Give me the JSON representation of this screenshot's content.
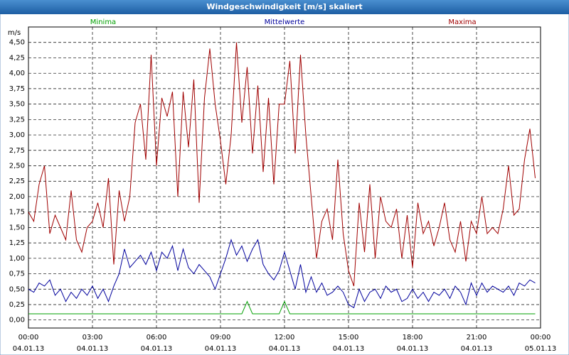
{
  "chart_data": {
    "type": "line",
    "title": "Windgeschwindigkeit [m/s] skaliert",
    "y_label": "m/s",
    "grid": true,
    "xlim": [
      0,
      24
    ],
    "ylim": [
      -0.13,
      4.75
    ],
    "xticks": [
      {
        "value": 0,
        "label": "00:00",
        "date": "04.01.13"
      },
      {
        "value": 3,
        "label": "03:00",
        "date": "04.01.13"
      },
      {
        "value": 6,
        "label": "06:00",
        "date": "04.01.13"
      },
      {
        "value": 9,
        "label": "09:00",
        "date": "04.01.13"
      },
      {
        "value": 12,
        "label": "12:00",
        "date": "04.01.13"
      },
      {
        "value": 15,
        "label": "15:00",
        "date": "04.01.13"
      },
      {
        "value": 18,
        "label": "18:00",
        "date": "04.01.13"
      },
      {
        "value": 21,
        "label": "21:00",
        "date": "04.01.13"
      },
      {
        "value": 24,
        "label": "00:00",
        "date": "05.01.13"
      }
    ],
    "yticks": [
      {
        "value": 0,
        "label": "0,00"
      },
      {
        "value": 0.25,
        "label": "0,25"
      },
      {
        "value": 0.5,
        "label": "0,50"
      },
      {
        "value": 0.75,
        "label": "0,75"
      },
      {
        "value": 1,
        "label": "1,00"
      },
      {
        "value": 1.25,
        "label": "1,25"
      },
      {
        "value": 1.5,
        "label": "1,50"
      },
      {
        "value": 1.75,
        "label": "1,75"
      },
      {
        "value": 2,
        "label": "2,00"
      },
      {
        "value": 2.25,
        "label": "2,25"
      },
      {
        "value": 2.5,
        "label": "2,50"
      },
      {
        "value": 2.75,
        "label": "2,75"
      },
      {
        "value": 3,
        "label": "3,00"
      },
      {
        "value": 3.25,
        "label": "3,25"
      },
      {
        "value": 3.5,
        "label": "3,50"
      },
      {
        "value": 3.75,
        "label": "3,75"
      },
      {
        "value": 4,
        "label": "4,00"
      },
      {
        "value": 4.25,
        "label": "4,25"
      },
      {
        "value": 4.5,
        "label": "4,50"
      }
    ],
    "x": [
      0,
      0.25,
      0.5,
      0.75,
      1,
      1.25,
      1.5,
      1.75,
      2,
      2.25,
      2.5,
      2.75,
      3,
      3.25,
      3.5,
      3.75,
      4,
      4.25,
      4.5,
      4.75,
      5,
      5.25,
      5.5,
      5.75,
      6,
      6.25,
      6.5,
      6.75,
      7,
      7.25,
      7.5,
      7.75,
      8,
      8.25,
      8.5,
      8.75,
      9,
      9.25,
      9.5,
      9.75,
      10,
      10.25,
      10.5,
      10.75,
      11,
      11.25,
      11.5,
      11.75,
      12,
      12.25,
      12.5,
      12.75,
      13,
      13.25,
      13.5,
      13.75,
      14,
      14.25,
      14.5,
      14.75,
      15,
      15.25,
      15.5,
      15.75,
      16,
      16.25,
      16.5,
      16.75,
      17,
      17.25,
      17.5,
      17.75,
      18,
      18.25,
      18.5,
      18.75,
      19,
      19.25,
      19.5,
      19.75,
      20,
      20.25,
      20.5,
      20.75,
      21,
      21.25,
      21.5,
      21.75,
      22,
      22.25,
      22.5,
      22.75,
      23,
      23.25,
      23.5,
      23.75
    ],
    "series": [
      {
        "name": "Minima",
        "color": "#00a000",
        "values": [
          0.1,
          0.1,
          0.1,
          0.1,
          0.1,
          0.1,
          0.1,
          0.1,
          0.1,
          0.1,
          0.1,
          0.1,
          0.1,
          0.1,
          0.1,
          0.1,
          0.1,
          0.1,
          0.1,
          0.1,
          0.1,
          0.1,
          0.1,
          0.1,
          0.1,
          0.1,
          0.1,
          0.1,
          0.1,
          0.1,
          0.1,
          0.1,
          0.1,
          0.1,
          0.1,
          0.1,
          0.1,
          0.1,
          0.1,
          0.1,
          0.1,
          0.3,
          0.1,
          0.1,
          0.1,
          0.1,
          0.1,
          0.1,
          0.3,
          0.1,
          0.1,
          0.1,
          0.1,
          0.1,
          0.1,
          0.1,
          0.1,
          0.1,
          0.1,
          0.1,
          0.1,
          0.1,
          0.1,
          0.1,
          0.1,
          0.1,
          0.1,
          0.1,
          0.1,
          0.1,
          0.1,
          0.1,
          0.1,
          0.1,
          0.1,
          0.1,
          0.1,
          0.1,
          0.1,
          0.1,
          0.1,
          0.1,
          0.1,
          0.1,
          0.1,
          0.1,
          0.1,
          0.1,
          0.1,
          0.1,
          0.1,
          0.1,
          0.1,
          0.1,
          0.1,
          0.1
        ]
      },
      {
        "name": "Mittelwerte",
        "color": "#00009c",
        "values": [
          0.5,
          0.45,
          0.6,
          0.55,
          0.65,
          0.4,
          0.5,
          0.3,
          0.45,
          0.35,
          0.5,
          0.4,
          0.55,
          0.35,
          0.5,
          0.3,
          0.55,
          0.75,
          1.15,
          0.85,
          0.95,
          1.05,
          0.9,
          1.1,
          0.8,
          1.1,
          1.0,
          1.2,
          0.8,
          1.15,
          0.85,
          0.75,
          0.9,
          0.8,
          0.7,
          0.5,
          0.75,
          1.0,
          1.3,
          1.05,
          1.2,
          0.95,
          1.15,
          1.3,
          0.9,
          0.75,
          0.65,
          0.8,
          1.1,
          0.8,
          0.5,
          0.9,
          0.45,
          0.7,
          0.45,
          0.6,
          0.4,
          0.45,
          0.55,
          0.45,
          0.25,
          0.2,
          0.5,
          0.3,
          0.45,
          0.5,
          0.35,
          0.55,
          0.45,
          0.5,
          0.3,
          0.35,
          0.5,
          0.35,
          0.45,
          0.3,
          0.45,
          0.4,
          0.5,
          0.35,
          0.55,
          0.45,
          0.25,
          0.6,
          0.4,
          0.6,
          0.45,
          0.55,
          0.5,
          0.45,
          0.55,
          0.4,
          0.6,
          0.55,
          0.65,
          0.6
        ]
      },
      {
        "name": "Maxima",
        "color": "#a00000",
        "values": [
          1.75,
          1.6,
          2.2,
          2.5,
          1.4,
          1.7,
          1.5,
          1.3,
          2.1,
          1.3,
          1.1,
          1.5,
          1.6,
          1.9,
          1.5,
          2.3,
          0.9,
          2.1,
          1.6,
          2.0,
          3.2,
          3.5,
          2.6,
          4.3,
          2.5,
          3.6,
          3.3,
          3.7,
          2.0,
          3.7,
          2.8,
          3.9,
          1.9,
          3.6,
          4.4,
          3.5,
          2.9,
          2.2,
          3.0,
          4.5,
          3.2,
          4.1,
          2.7,
          3.8,
          2.4,
          3.6,
          2.2,
          3.5,
          3.5,
          4.2,
          2.7,
          4.3,
          3.0,
          2.0,
          1.0,
          1.6,
          1.8,
          1.3,
          2.6,
          1.4,
          0.8,
          0.55,
          1.9,
          1.1,
          2.2,
          1.0,
          2.0,
          1.6,
          1.5,
          1.8,
          1.0,
          1.7,
          0.85,
          1.9,
          1.4,
          1.6,
          1.2,
          1.5,
          1.9,
          1.3,
          1.1,
          1.6,
          0.95,
          1.6,
          1.4,
          2.0,
          1.4,
          1.5,
          1.4,
          1.8,
          2.5,
          1.7,
          1.8,
          2.6,
          3.1,
          2.3
        ]
      }
    ]
  }
}
